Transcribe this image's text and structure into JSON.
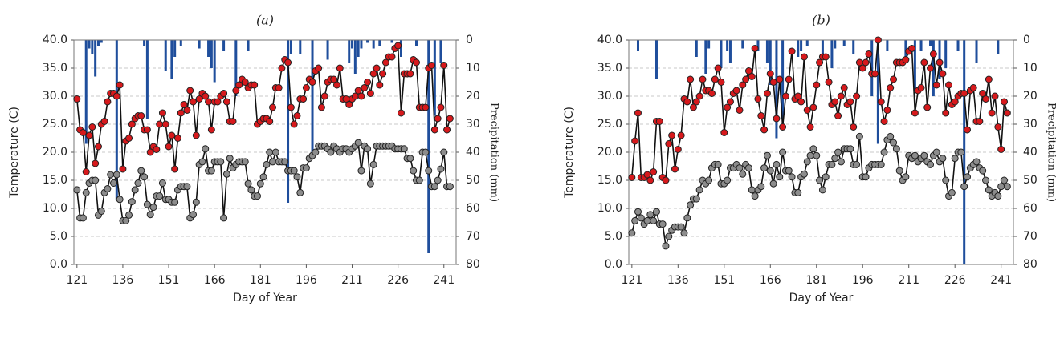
{
  "chart_data": [
    {
      "type": "line",
      "title": "(a)",
      "xlabel": "Day of Year",
      "ylabel": "Temperature (C)",
      "y2label": "Precipitation (mm)",
      "xlim": [
        120,
        245
      ],
      "xticks": [
        121,
        136,
        151,
        166,
        181,
        196,
        211,
        226,
        241
      ],
      "ylim": [
        0,
        40
      ],
      "yticks": [
        {
          "value": 0,
          "label": "0.0"
        },
        {
          "value": 5,
          "label": "5.0"
        },
        {
          "value": 10,
          "label": "10.0"
        },
        {
          "value": 15,
          "label": "15.0"
        },
        {
          "value": 20,
          "label": "20.0"
        },
        {
          "value": 25,
          "label": "25.0"
        },
        {
          "value": 30,
          "label": "30.0"
        },
        {
          "value": 35,
          "label": "35.0"
        },
        {
          "value": 40,
          "label": "40.0"
        }
      ],
      "y2lim": [
        0,
        80
      ],
      "y2ticks": [
        0,
        10,
        20,
        30,
        40,
        50,
        60,
        70,
        80
      ],
      "y2_inverted": true,
      "grid": true,
      "x": [
        121,
        122,
        123,
        124,
        125,
        126,
        127,
        128,
        129,
        130,
        131,
        132,
        133,
        134,
        135,
        136,
        137,
        138,
        139,
        140,
        141,
        142,
        143,
        144,
        145,
        146,
        147,
        148,
        149,
        150,
        151,
        152,
        153,
        154,
        155,
        156,
        157,
        158,
        159,
        160,
        161,
        162,
        163,
        164,
        165,
        166,
        167,
        168,
        169,
        170,
        171,
        172,
        173,
        174,
        175,
        176,
        177,
        178,
        179,
        180,
        181,
        182,
        183,
        184,
        185,
        186,
        187,
        188,
        189,
        190,
        191,
        192,
        193,
        194,
        195,
        196,
        197,
        198,
        199,
        200,
        201,
        202,
        203,
        204,
        205,
        206,
        207,
        208,
        209,
        210,
        211,
        212,
        213,
        214,
        215,
        216,
        217,
        218,
        219,
        220,
        221,
        222,
        223,
        224,
        225,
        226,
        227,
        228,
        229,
        230,
        231,
        232,
        233,
        234,
        235,
        236,
        237,
        238,
        239,
        240,
        241,
        242,
        243
      ],
      "series": [
        {
          "color": "#d7191c",
          "values": [
            29.5,
            24,
            23.5,
            16.5,
            23,
            24.5,
            18,
            21,
            25,
            25.5,
            29,
            30.5,
            30.5,
            30,
            32,
            17,
            22,
            22.5,
            25,
            26,
            26.5,
            26.5,
            24,
            24,
            20,
            21,
            20.5,
            25,
            27,
            25,
            21,
            23,
            17,
            22.5,
            27,
            28.5,
            27.5,
            31,
            29,
            23,
            29.5,
            30.5,
            30,
            29,
            24,
            29,
            29,
            30,
            30.5,
            29,
            25.5,
            25.5,
            31,
            32,
            33,
            32.5,
            31.5,
            32,
            32,
            25,
            25.5,
            26,
            26,
            25.5,
            28,
            31.5,
            31.5,
            35,
            36.5,
            36,
            28,
            25,
            26.5,
            29.5,
            29.5,
            31.5,
            33,
            32.5,
            34.5,
            35,
            28,
            30,
            32.5,
            33,
            33,
            32,
            35,
            29.5,
            29.5,
            28.5,
            29.5,
            30,
            31,
            30,
            31.5,
            32.5,
            30.5,
            34,
            35,
            32,
            34,
            36,
            37,
            37,
            38.5,
            39,
            27,
            34,
            34,
            34,
            36.5,
            36,
            28,
            28,
            28,
            35,
            35.5,
            24,
            26,
            28,
            35.5,
            24,
            26
          ]
        },
        {
          "color": "#8c8c8c",
          "values": [
            13.3,
            8.3,
            8.3,
            12.8,
            14.5,
            15,
            15,
            8.8,
            9.5,
            12.8,
            13.5,
            16,
            14.5,
            16,
            11.6,
            7.8,
            7.8,
            8.8,
            11.2,
            13.3,
            14.5,
            16.7,
            15.6,
            10.7,
            8.9,
            10.2,
            12.2,
            12.2,
            14.5,
            11.6,
            11.6,
            11.1,
            11.1,
            13.3,
            13.9,
            13.9,
            13.9,
            8.3,
            8.9,
            11.1,
            17.8,
            18.3,
            20.6,
            16.7,
            16.7,
            18.3,
            18.3,
            18.3,
            8.3,
            16.1,
            18.9,
            17.2,
            17.8,
            18.3,
            18.3,
            18.3,
            14.4,
            13.3,
            12.2,
            12.2,
            14.4,
            15.6,
            17.8,
            20,
            18.3,
            20,
            18.3,
            18.3,
            18.3,
            16.7,
            16.7,
            16.7,
            15.6,
            12.8,
            17.2,
            17.2,
            18.9,
            19.4,
            20,
            21.1,
            21.1,
            21.1,
            20.6,
            20,
            21.1,
            20.6,
            20,
            20.6,
            20.6,
            20,
            20.6,
            21.1,
            21.7,
            16.7,
            21.1,
            20.6,
            14.4,
            17.8,
            21.1,
            21.1,
            21.1,
            21.1,
            21.1,
            21.1,
            20.6,
            20.6,
            20.6,
            20.6,
            18.9,
            18.9,
            16.7,
            15,
            15,
            20,
            20,
            16.7,
            13.9,
            13.9,
            15,
            17,
            20,
            13.9,
            13.9
          ]
        },
        {
          "type": "bar",
          "axis": "y2",
          "color": "#1f4e9c",
          "x": [
            124,
            125,
            126,
            127,
            128,
            129,
            134,
            143,
            144,
            150,
            152,
            153,
            155,
            161,
            164,
            165,
            166,
            169,
            173,
            177,
            190,
            191,
            194,
            198,
            203,
            210,
            211,
            212,
            213,
            214,
            216,
            218,
            220,
            224,
            227,
            232,
            236,
            238,
            240
          ],
          "values": [
            37,
            3,
            5,
            13,
            2,
            1,
            57,
            2,
            28,
            11,
            14,
            6,
            2,
            3,
            6,
            10,
            15,
            4,
            20,
            4,
            58,
            5,
            5,
            40,
            7,
            8,
            3,
            12,
            6,
            3,
            1,
            3,
            2,
            1,
            6,
            2,
            76,
            27,
            8
          ]
        }
      ]
    },
    {
      "type": "line",
      "title": "(b)",
      "xlabel": "Day of Year",
      "ylabel": "Temperature (C)",
      "y2label": "Precipitation (mm)",
      "xlim": [
        120,
        245
      ],
      "xticks": [
        121,
        136,
        151,
        166,
        181,
        196,
        211,
        226,
        241
      ],
      "ylim": [
        0,
        40
      ],
      "yticks": [
        {
          "value": 0,
          "label": "0.0"
        },
        {
          "value": 5,
          "label": "5.0"
        },
        {
          "value": 10,
          "label": "10.0"
        },
        {
          "value": 15,
          "label": "15.0"
        },
        {
          "value": 20,
          "label": "20.0"
        },
        {
          "value": 25,
          "label": "25.0"
        },
        {
          "value": 30,
          "label": "30.0"
        },
        {
          "value": 35,
          "label": "35.0"
        },
        {
          "value": 40,
          "label": "40.0"
        }
      ],
      "y2lim": [
        0,
        80
      ],
      "y2ticks": [
        0,
        10,
        20,
        30,
        40,
        50,
        60,
        70,
        80
      ],
      "y2_inverted": true,
      "grid": true,
      "x": [
        121,
        122,
        123,
        124,
        125,
        126,
        127,
        128,
        129,
        130,
        131,
        132,
        133,
        134,
        135,
        136,
        137,
        138,
        139,
        140,
        141,
        142,
        143,
        144,
        145,
        146,
        147,
        148,
        149,
        150,
        151,
        152,
        153,
        154,
        155,
        156,
        157,
        158,
        159,
        160,
        161,
        162,
        163,
        164,
        165,
        166,
        167,
        168,
        169,
        170,
        171,
        172,
        173,
        174,
        175,
        176,
        177,
        178,
        179,
        180,
        181,
        182,
        183,
        184,
        185,
        186,
        187,
        188,
        189,
        190,
        191,
        192,
        193,
        194,
        195,
        196,
        197,
        198,
        199,
        200,
        201,
        202,
        203,
        204,
        205,
        206,
        207,
        208,
        209,
        210,
        211,
        212,
        213,
        214,
        215,
        216,
        217,
        218,
        219,
        220,
        221,
        222,
        223,
        224,
        225,
        226,
        227,
        228,
        229,
        230,
        231,
        232,
        233,
        234,
        235,
        236,
        237,
        238,
        239,
        240,
        241,
        242,
        243
      ],
      "series": [
        {
          "color": "#d7191c",
          "values": [
            15.5,
            22,
            27,
            15.5,
            15.5,
            16,
            15,
            16.5,
            25.5,
            25.5,
            15.5,
            15,
            21.5,
            23,
            17,
            20.5,
            23,
            29.5,
            29,
            33,
            28,
            29,
            30,
            33,
            31,
            31,
            30.5,
            33,
            35,
            32.5,
            23.5,
            28,
            29,
            30.5,
            31,
            27.5,
            32,
            33,
            34.5,
            33.5,
            38.5,
            29.5,
            26.5,
            24,
            30.5,
            34,
            32.5,
            26,
            33,
            24.5,
            30,
            33,
            38,
            29.5,
            30,
            29,
            37,
            27.5,
            24.5,
            28,
            32,
            36,
            37,
            37,
            32.5,
            28.5,
            29,
            26.5,
            30,
            31.5,
            28.5,
            29,
            24.5,
            30,
            36,
            35,
            36,
            37.5,
            34,
            34,
            40,
            29,
            25.5,
            27.5,
            31.5,
            33,
            36,
            36,
            36,
            36.5,
            38,
            38.5,
            27,
            31,
            31.5,
            36,
            28,
            35,
            37.5,
            32,
            36,
            34,
            27,
            32,
            28.5,
            29,
            30,
            30.5,
            30.5,
            24,
            31,
            31.5,
            25.5,
            25.5,
            30.5,
            29.5,
            33,
            27,
            30,
            24.5,
            20.5,
            29,
            27
          ]
        },
        {
          "color": "#8c8c8c",
          "values": [
            5.6,
            7.8,
            9.4,
            8.3,
            7.2,
            7.8,
            8.9,
            7.8,
            9.4,
            7.2,
            7.2,
            3.3,
            5,
            6.1,
            6.7,
            6.7,
            6.7,
            5.6,
            8.3,
            10.6,
            11.7,
            11.7,
            13.3,
            15,
            14.4,
            15,
            17.2,
            17.8,
            17.8,
            14.4,
            14.4,
            15,
            17.2,
            17.2,
            17.8,
            17.2,
            16.1,
            17.8,
            17.2,
            13.3,
            12.2,
            13.3,
            13.9,
            17.2,
            19.4,
            16.7,
            14.4,
            17.8,
            15.6,
            20,
            16.7,
            16.7,
            15.6,
            12.8,
            12.8,
            15.6,
            16.1,
            18.3,
            19.4,
            20.6,
            19.4,
            15,
            13.3,
            15.6,
            17.8,
            17.8,
            18.9,
            20,
            18.3,
            20.6,
            20.6,
            20.6,
            17.8,
            17.8,
            22.8,
            15.6,
            15.6,
            17.2,
            17.8,
            17.8,
            17.8,
            17.8,
            20,
            22.2,
            22.8,
            21.7,
            20.6,
            16.7,
            15,
            15.6,
            19.4,
            18.9,
            19.4,
            18.3,
            18.9,
            19.4,
            18.3,
            17.8,
            19.4,
            20,
            18.3,
            18.9,
            15,
            12.2,
            12.8,
            18.9,
            20,
            20,
            13.9,
            15.6,
            17.2,
            17.8,
            18.3,
            17.2,
            16.7,
            15,
            13.3,
            12.2,
            12.8,
            12.2,
            13.9,
            15,
            13.9
          ]
        },
        {
          "type": "bar",
          "axis": "y2",
          "color": "#1f4e9c",
          "x": [
            123,
            129,
            142,
            145,
            146,
            150,
            152,
            153,
            157,
            162,
            165,
            166,
            168,
            170,
            175,
            176,
            178,
            183,
            186,
            187,
            190,
            193,
            199,
            201,
            204,
            210,
            213,
            215,
            218,
            219,
            221,
            223,
            227,
            229,
            233,
            240
          ],
          "values": [
            4,
            14,
            6,
            12,
            3,
            10,
            4,
            8,
            3,
            4,
            8,
            16,
            35,
            28,
            6,
            4,
            2,
            6,
            10,
            3,
            2,
            5,
            20,
            37,
            4,
            6,
            18,
            4,
            2,
            20,
            14,
            10,
            4,
            80,
            8,
            5
          ]
        }
      ]
    }
  ]
}
